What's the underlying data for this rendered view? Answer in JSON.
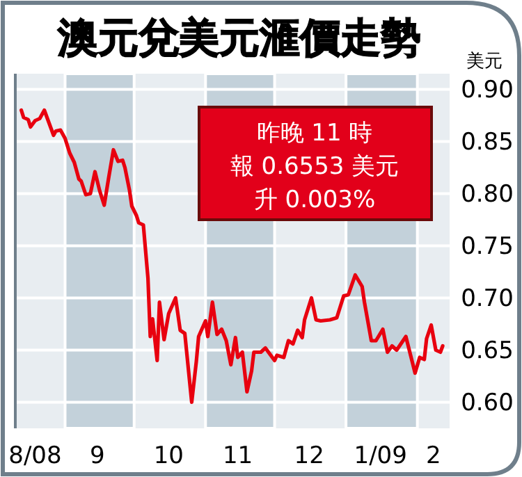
{
  "chart_data": {
    "type": "line",
    "title": "澳元兌美元滙價走勢",
    "ylabel": "美元",
    "annotations": [
      "昨晚 11 時",
      "報 0.6553 美元",
      "升 0.003%"
    ],
    "x": [
      "2008-08-13",
      "2008-08-14",
      "2008-08-16",
      "2008-08-17",
      "2008-08-19",
      "2008-08-21",
      "2008-08-23",
      "2008-08-25",
      "2008-08-27",
      "2008-08-28",
      "2008-08-30",
      "2008-09-01",
      "2008-09-03",
      "2008-09-05",
      "2008-09-07",
      "2008-09-08",
      "2008-09-10",
      "2008-09-12",
      "2008-09-14",
      "2008-09-16",
      "2008-09-18",
      "2008-09-20",
      "2008-09-22",
      "2008-09-24",
      "2008-09-26",
      "2008-09-27",
      "2008-09-29",
      "2008-09-30",
      "2008-10-02",
      "2008-10-03",
      "2008-10-05",
      "2008-10-07",
      "2008-10-08",
      "2008-10-09",
      "2008-10-11",
      "2008-10-12",
      "2008-10-14",
      "2008-10-16",
      "2008-10-19",
      "2008-10-21",
      "2008-10-23",
      "2008-10-26",
      "2008-10-28",
      "2008-10-29",
      "2008-11-01",
      "2008-11-02",
      "2008-11-04",
      "2008-11-06",
      "2008-11-08",
      "2008-11-10",
      "2008-11-12",
      "2008-11-14",
      "2008-11-15",
      "2008-11-17",
      "2008-11-19",
      "2008-11-21",
      "2008-11-22",
      "2008-11-25",
      "2008-11-27",
      "2008-12-01",
      "2008-12-02",
      "2008-12-05",
      "2008-12-07",
      "2008-12-09",
      "2008-12-11",
      "2008-12-13",
      "2008-12-14",
      "2008-12-17",
      "2008-12-19",
      "2008-12-21",
      "2008-12-25",
      "2008-12-28",
      "2008-12-31",
      "2009-01-02",
      "2009-01-05",
      "2009-01-08",
      "2009-01-09",
      "2009-01-12",
      "2009-01-14",
      "2009-01-17",
      "2009-01-19",
      "2009-01-21",
      "2009-01-23",
      "2009-01-27",
      "2009-01-31",
      "2009-02-02",
      "2009-02-04",
      "2009-02-05",
      "2009-02-07",
      "2009-02-09",
      "2009-02-11",
      "2009-02-12"
    ],
    "series": [
      {
        "color": "#e8000f",
        "values": [
          0.88,
          0.873,
          0.871,
          0.864,
          0.87,
          0.872,
          0.88,
          0.868,
          0.856,
          0.86,
          0.861,
          0.853,
          0.839,
          0.83,
          0.814,
          0.812,
          0.799,
          0.8,
          0.821,
          0.803,
          0.789,
          0.816,
          0.842,
          0.831,
          0.832,
          0.825,
          0.803,
          0.788,
          0.779,
          0.772,
          0.77,
          0.719,
          0.663,
          0.68,
          0.64,
          0.696,
          0.66,
          0.685,
          0.7,
          0.669,
          0.666,
          0.6,
          0.639,
          0.663,
          0.678,
          0.663,
          0.696,
          0.665,
          0.67,
          0.659,
          0.636,
          0.662,
          0.643,
          0.648,
          0.61,
          0.63,
          0.648,
          0.648,
          0.652,
          0.64,
          0.645,
          0.643,
          0.659,
          0.656,
          0.669,
          0.662,
          0.679,
          0.7,
          0.679,
          0.678,
          0.679,
          0.681,
          0.702,
          0.703,
          0.722,
          0.711,
          0.696,
          0.659,
          0.659,
          0.67,
          0.648,
          0.654,
          0.65,
          0.663,
          0.628,
          0.643,
          0.641,
          0.661,
          0.674,
          0.65,
          0.648,
          0.654
        ]
      }
    ],
    "xlim": [
      "2008-08-11",
      "2009-02-15"
    ],
    "xticks": [
      {
        "value": "2008-08-19",
        "label": "8/08"
      },
      {
        "value": "2008-09-15",
        "label": "9"
      },
      {
        "value": "2008-10-16",
        "label": "10"
      },
      {
        "value": "2008-11-15",
        "label": "11"
      },
      {
        "value": "2008-12-16",
        "label": "12"
      },
      {
        "value": "2009-01-16",
        "label": "1/09"
      },
      {
        "value": "2009-02-08",
        "label": "2"
      }
    ],
    "ylim": [
      0.575,
      0.915
    ],
    "yticks": [
      {
        "value": 0.6,
        "label": "0.60"
      },
      0.65,
      {
        "value": 0.7,
        "label": "0.70"
      },
      0.75,
      {
        "value": 0.8,
        "label": "0.80"
      },
      0.85,
      {
        "value": 0.9,
        "label": "0.90"
      }
    ],
    "grid": "y",
    "line_style": "solid",
    "marker": "none",
    "bands": [
      {
        "axis": "x",
        "from": "2008-09-01",
        "to": "2008-10-01",
        "color": "#c3d1da"
      },
      {
        "axis": "x",
        "from": "2008-11-01",
        "to": "2008-12-01",
        "color": "#c3d1da"
      },
      {
        "axis": "x",
        "from": "2009-01-01",
        "to": "2009-02-01",
        "color": "#c3d1da"
      }
    ]
  }
}
